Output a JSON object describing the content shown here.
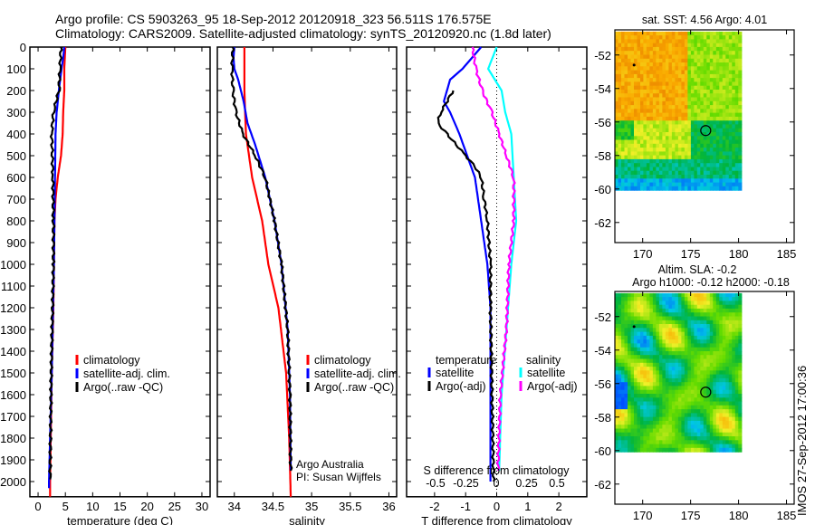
{
  "title_line1": "Argo profile: CS 5903263_95 18-Sep-2012 20120918_323 56.511S 176.575E",
  "title_line2": "Climatology: CARS2009. Satellite-adjusted climatology: synTS_20120920.nc (1.8d later)",
  "stamp": "IMOS 27-Sep-2012 17:00:36",
  "colors": {
    "climatology": "#ff0000",
    "satellite": "#0000ff",
    "argo": "#000000",
    "s_satellite": "#00ffff",
    "s_argo": "#ff00ff"
  },
  "chart_data": [
    {
      "type": "line",
      "id": "temperature",
      "xlabel": "temperature (deg C)",
      "xlim": [
        -1.5,
        31.5
      ],
      "ylim": [
        2070,
        0
      ],
      "xticks": [
        "0",
        "5",
        "10",
        "15",
        "20",
        "25",
        "30"
      ],
      "xtickvals": [
        0,
        5,
        10,
        15,
        20,
        25,
        30
      ],
      "yticks": [
        "0",
        "100",
        "200",
        "300",
        "400",
        "500",
        "600",
        "700",
        "800",
        "900",
        "1000",
        "1100",
        "1200",
        "1300",
        "1400",
        "1500",
        "1600",
        "1700",
        "1800",
        "1900",
        "2000"
      ],
      "legend": [
        "climatology",
        "satellite-adj. clim.",
        "Argo(..raw -QC)"
      ],
      "series": [
        {
          "name": "climatology",
          "color": "#ff0000",
          "depth": [
            0,
            100,
            200,
            300,
            400,
            500,
            600,
            700,
            800,
            1000,
            1200,
            1500,
            2000,
            2070
          ],
          "values": [
            5.0,
            4.8,
            4.8,
            4.6,
            4.5,
            4.2,
            3.6,
            3.2,
            3.0,
            2.9,
            2.8,
            2.5,
            2.2,
            2.2
          ]
        },
        {
          "name": "satellite-adj. clim.",
          "color": "#0000ff",
          "depth": [
            0,
            50,
            100,
            200,
            300,
            400,
            600,
            800,
            1000,
            1500,
            2000,
            2030
          ],
          "values": [
            4.8,
            4.6,
            4.3,
            3.8,
            3.4,
            3.2,
            3.1,
            3.0,
            2.9,
            2.5,
            2.0,
            2.0
          ]
        },
        {
          "name": "Argo(..raw -QC)",
          "color": "#000000",
          "depth": [
            0,
            100,
            200,
            300,
            400,
            600,
            800,
            1000,
            1500,
            1990
          ],
          "values": [
            4.2,
            4.0,
            3.8,
            2.8,
            2.5,
            2.7,
            2.8,
            2.8,
            2.4,
            2.2
          ]
        }
      ]
    },
    {
      "type": "line",
      "id": "salinity",
      "xlabel": "salinity",
      "xlim": [
        33.78,
        36.1
      ],
      "ylim": [
        2070,
        0
      ],
      "xticks": [
        "34",
        "34.5",
        "35",
        "35.5",
        "36"
      ],
      "xtickvals": [
        34,
        34.5,
        35,
        35.5,
        36
      ],
      "legend": [
        "climatology",
        "satellite-adj. clim.",
        "Argo(..raw -QC)"
      ],
      "annotation": [
        "Argo Australia",
        "PI: Susan Wijffels"
      ],
      "series": [
        {
          "name": "climatology",
          "color": "#ff0000",
          "depth": [
            0,
            200,
            300,
            400,
            600,
            800,
            1000,
            1200,
            1500,
            1800,
            2070
          ],
          "values": [
            34.13,
            34.13,
            34.14,
            34.15,
            34.23,
            34.36,
            34.44,
            34.57,
            34.67,
            34.71,
            34.73
          ]
        },
        {
          "name": "satellite-adj. clim.",
          "color": "#0000ff",
          "depth": [
            0,
            50,
            100,
            150,
            250,
            350,
            450,
            600,
            800,
            1000,
            1300,
            1600,
            1950
          ],
          "values": [
            34.0,
            33.99,
            34.0,
            34.05,
            34.12,
            34.17,
            34.27,
            34.4,
            34.52,
            34.61,
            34.69,
            34.72,
            34.73
          ]
        },
        {
          "name": "Argo(..raw -QC)",
          "color": "#000000",
          "depth": [
            0,
            100,
            200,
            300,
            400,
            500,
            600,
            800,
            1000,
            1300,
            1600,
            1950
          ],
          "values": [
            33.98,
            33.97,
            33.98,
            34.02,
            34.11,
            34.27,
            34.4,
            34.52,
            34.61,
            34.69,
            34.72,
            34.73
          ]
        }
      ]
    },
    {
      "type": "line",
      "id": "differences",
      "xlabel": "T difference from climatology",
      "x2label": "S difference from climatology",
      "xlim": [
        -2.9,
        2.9
      ],
      "x2lim": [
        -0.74,
        0.74
      ],
      "ylim": [
        2070,
        0
      ],
      "xticks": [
        "-2",
        "-1",
        "0",
        "1",
        "2"
      ],
      "xtickvals": [
        -2,
        -1,
        0,
        1,
        2
      ],
      "x2ticks": [
        "-0.5",
        "-0.25",
        "0",
        "0.25",
        "0.5"
      ],
      "x2tickvals": [
        -0.5,
        -0.25,
        0,
        0.25,
        0.5
      ],
      "legend_t": {
        "title": "temperature",
        "items": [
          "satellite",
          "Argo(-adj)"
        ]
      },
      "legend_s": {
        "title": "salinity",
        "items": [
          "satellite",
          "Argo(-adj)"
        ]
      },
      "series": [
        {
          "name": "T satellite",
          "axis": "T",
          "color": "#0000ff",
          "depth": [
            0,
            100,
            150,
            250,
            300,
            400,
            600,
            800,
            1000,
            1200,
            1500,
            2000
          ],
          "values": [
            -0.5,
            -1.1,
            -1.5,
            -1.7,
            -1.5,
            -1.2,
            -0.7,
            -0.5,
            -0.3,
            -0.2,
            -0.2,
            -0.2
          ]
        },
        {
          "name": "T Argo(-adj)",
          "axis": "T",
          "color": "#000000",
          "depth": [
            200,
            300,
            350,
            400,
            500,
            550,
            600,
            700,
            800,
            1000,
            1200,
            2000
          ],
          "values": [
            -1.4,
            -1.8,
            -1.9,
            -1.6,
            -1.0,
            -0.7,
            -0.5,
            -0.4,
            -0.3,
            -0.2,
            -0.2,
            -0.1
          ]
        },
        {
          "name": "S satellite",
          "axis": "S",
          "color": "#00ffff",
          "depth": [
            0,
            100,
            200,
            300,
            400,
            600,
            800,
            1000,
            1300,
            1600,
            1950
          ],
          "values": [
            0,
            -0.07,
            0.04,
            0.07,
            0.12,
            0.14,
            0.16,
            0.12,
            0.08,
            0.04,
            0.02
          ]
        },
        {
          "name": "S Argo(-adj)",
          "axis": "S",
          "color": "#ff00ff",
          "depth": [
            0,
            100,
            200,
            300,
            400,
            500,
            600,
            800,
            1000,
            1300,
            1600,
            1950
          ],
          "values": [
            -0.2,
            -0.17,
            -0.12,
            -0.04,
            0.02,
            0.08,
            0.14,
            0.14,
            0.1,
            0.08,
            0.03,
            0.01
          ]
        }
      ]
    },
    {
      "type": "heatmap",
      "id": "sst_map",
      "title": "sat. SST: 4.56 Argo: 4.01",
      "xlim": [
        167.1,
        185.8
      ],
      "ylim": [
        -63.2,
        -50.5
      ],
      "xticks": [
        "170",
        "175",
        "180",
        "185"
      ],
      "xtickvals": [
        170,
        175,
        180,
        185
      ],
      "yticks": [
        "-52",
        "-54",
        "-56",
        "-58",
        "-60",
        "-62"
      ],
      "ytickvals": [
        -52,
        -54,
        -56,
        -58,
        -60,
        -62
      ],
      "data_extent": {
        "lon": [
          167.1,
          180
        ],
        "lat": [
          -60,
          -50.6
        ]
      },
      "argo_position": [
        176.575,
        -56.511
      ]
    },
    {
      "type": "heatmap",
      "id": "sla_map",
      "title": "Altim. SLA: -0.2",
      "subtitle": "Argo h1000: -0.12 h2000: -0.18",
      "xlim": [
        167.1,
        185.8
      ],
      "ylim": [
        -63.2,
        -50.5
      ],
      "xticks": [
        "170",
        "175",
        "180",
        "185"
      ],
      "xtickvals": [
        170,
        175,
        180,
        185
      ],
      "yticks": [
        "-52",
        "-54",
        "-56",
        "-58",
        "-60",
        "-62"
      ],
      "ytickvals": [
        -52,
        -54,
        -56,
        -58,
        -60,
        -62
      ],
      "data_extent": {
        "lon": [
          167.1,
          180
        ],
        "lat": [
          -60,
          -50.6
        ]
      },
      "argo_position": [
        176.575,
        -56.511
      ]
    }
  ]
}
